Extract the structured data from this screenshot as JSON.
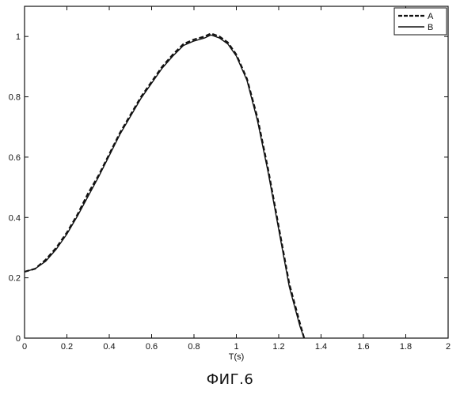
{
  "figure_caption": "ФИГ.6",
  "chart_data": {
    "type": "line",
    "title": "",
    "xlabel": "T(s)",
    "ylabel": "",
    "xlim": [
      0,
      2
    ],
    "ylim": [
      0,
      1.1
    ],
    "xticks": [
      0,
      0.2,
      0.4,
      0.6,
      0.8,
      1,
      1.2,
      1.4,
      1.6,
      1.8,
      2
    ],
    "xtick_labels": [
      "0",
      "0.2",
      "0.4",
      "0.6",
      "0.8",
      "1",
      "1.2",
      "1.4",
      "1.6",
      "1.8",
      "2"
    ],
    "yticks": [
      0,
      0.2,
      0.4,
      0.6,
      0.8,
      1
    ],
    "ytick_labels": [
      "0",
      "0.2",
      "0.4",
      "0.6",
      "0.8",
      "1"
    ],
    "grid": false,
    "legend_position": "top-right",
    "series": [
      {
        "name": "A",
        "line_style": "dashed",
        "color": "#111111",
        "x": [
          0,
          0.05,
          0.1,
          0.15,
          0.2,
          0.25,
          0.3,
          0.35,
          0.4,
          0.45,
          0.5,
          0.55,
          0.6,
          0.65,
          0.7,
          0.75,
          0.8,
          0.85,
          0.88,
          0.92,
          0.96,
          1.0,
          1.05,
          1.1,
          1.15,
          1.2,
          1.25,
          1.3,
          1.32
        ],
        "y": [
          0.22,
          0.23,
          0.26,
          0.3,
          0.35,
          0.41,
          0.48,
          0.54,
          0.61,
          0.68,
          0.74,
          0.8,
          0.85,
          0.9,
          0.94,
          0.975,
          0.99,
          1.0,
          1.01,
          1.0,
          0.98,
          0.94,
          0.86,
          0.73,
          0.56,
          0.37,
          0.18,
          0.05,
          0.0
        ]
      },
      {
        "name": "B",
        "line_style": "solid",
        "color": "#111111",
        "x": [
          0,
          0.05,
          0.1,
          0.15,
          0.2,
          0.25,
          0.3,
          0.35,
          0.4,
          0.45,
          0.5,
          0.55,
          0.6,
          0.65,
          0.7,
          0.75,
          0.8,
          0.85,
          0.88,
          0.92,
          0.96,
          1.0,
          1.05,
          1.1,
          1.15,
          1.2,
          1.25,
          1.3,
          1.32
        ],
        "y": [
          0.22,
          0.23,
          0.255,
          0.295,
          0.345,
          0.405,
          0.47,
          0.535,
          0.605,
          0.675,
          0.735,
          0.795,
          0.845,
          0.895,
          0.935,
          0.97,
          0.985,
          0.995,
          1.005,
          0.995,
          0.975,
          0.935,
          0.855,
          0.72,
          0.55,
          0.36,
          0.17,
          0.04,
          0.0
        ]
      }
    ]
  }
}
